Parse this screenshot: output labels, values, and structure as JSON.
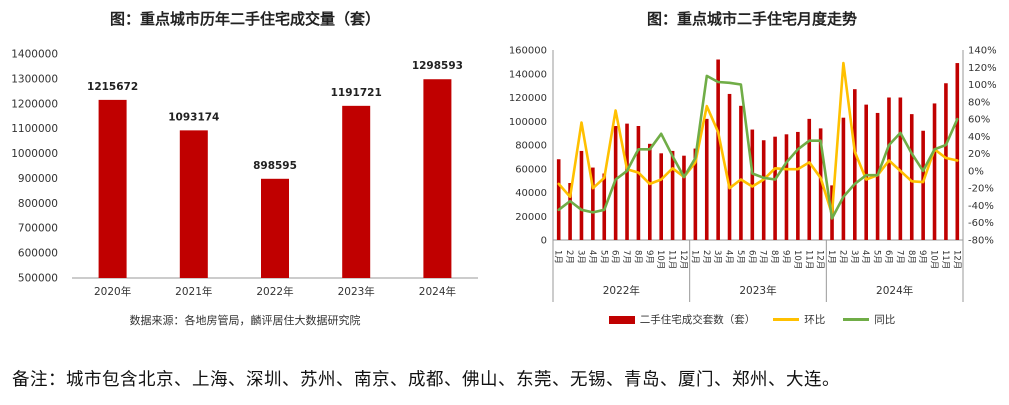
{
  "left_chart": {
    "title": "图：重点城市历年二手住宅成交量（套）",
    "source": "数据来源：各地房管局，麟评居住大数据研究院",
    "chart_data": {
      "type": "bar",
      "categories": [
        "2020年",
        "2021年",
        "2022年",
        "2023年",
        "2024年"
      ],
      "values": [
        1215672,
        1093174,
        898595,
        1191721,
        1298593
      ],
      "data_labels": [
        "1215672",
        "1093174",
        "898595",
        "1191721",
        "1298593"
      ],
      "ylim": [
        500000,
        1400000
      ],
      "yticks": [
        500000,
        600000,
        700000,
        800000,
        900000,
        1000000,
        1100000,
        1200000,
        1300000,
        1400000
      ],
      "ytick_labels": [
        "500000",
        "600000",
        "700000",
        "800000",
        "900000",
        "1000000",
        "1100000",
        "1200000",
        "1300000",
        "1400000"
      ],
      "bar_color": "#c00000",
      "grid": false
    }
  },
  "right_chart": {
    "title": "图：重点城市二手住宅月度走势",
    "chart_data": {
      "type": "bar",
      "months": [
        "1月",
        "2月",
        "3月",
        "4月",
        "5月",
        "6月",
        "7月",
        "8月",
        "9月",
        "10月",
        "11月",
        "12月"
      ],
      "years": [
        "2022年",
        "2023年",
        "2024年"
      ],
      "series": [
        {
          "name": "二手住宅成交套数（套）",
          "type": "bar",
          "axis": "left",
          "color": "#c00000",
          "values": [
            68000,
            48000,
            75000,
            61000,
            56000,
            96000,
            98000,
            96000,
            81000,
            73000,
            75000,
            71000,
            77000,
            102000,
            152000,
            123000,
            113000,
            93000,
            84000,
            87000,
            89000,
            91000,
            102000,
            94000,
            46000,
            103000,
            127000,
            114000,
            107000,
            120000,
            120000,
            106000,
            92000,
            115000,
            132000,
            149000
          ]
        },
        {
          "name": "环比",
          "type": "line",
          "axis": "right",
          "color": "#ffc000",
          "values": [
            -15,
            -30,
            56,
            -20,
            -8,
            70,
            2,
            -2,
            -15,
            -10,
            3,
            -7,
            10,
            75,
            45,
            -20,
            -10,
            -18,
            -10,
            3,
            2,
            2,
            10,
            -8,
            -50,
            125,
            22,
            -10,
            -5,
            12,
            0,
            -12,
            -13,
            25,
            15,
            12
          ]
        },
        {
          "name": "同比",
          "type": "line",
          "axis": "right",
          "color": "#70ad47",
          "values": [
            -45,
            -35,
            -45,
            -48,
            -45,
            -10,
            0,
            25,
            25,
            43,
            17,
            -7,
            15,
            110,
            103,
            102,
            100,
            -3,
            -8,
            -10,
            10,
            25,
            35,
            35,
            -55,
            -30,
            -15,
            -5,
            -5,
            30,
            44,
            20,
            0,
            25,
            30,
            60
          ]
        }
      ],
      "y_left": {
        "ylim": [
          0,
          160000
        ],
        "ticks": [
          0,
          20000,
          40000,
          60000,
          80000,
          100000,
          120000,
          140000,
          160000
        ],
        "tick_labels": [
          "0",
          "20000",
          "40000",
          "60000",
          "80000",
          "100000",
          "120000",
          "140000",
          "160000"
        ]
      },
      "y_right": {
        "ylim": [
          -80,
          140
        ],
        "ticks": [
          -80,
          -60,
          -40,
          -20,
          0,
          20,
          40,
          60,
          80,
          100,
          120,
          140
        ],
        "tick_labels": [
          "-80%",
          "-60%",
          "-40%",
          "-20%",
          "0%",
          "20%",
          "40%",
          "60%",
          "80%",
          "100%",
          "120%",
          "140%"
        ]
      },
      "legend": [
        "二手住宅成交套数（套）",
        "环比",
        "同比"
      ],
      "legend_position": "bottom",
      "grid": false
    }
  },
  "note": "备注：城市包含北京、上海、深圳、苏州、南京、成都、佛山、东莞、无锡、青岛、厦门、郑州、大连。"
}
